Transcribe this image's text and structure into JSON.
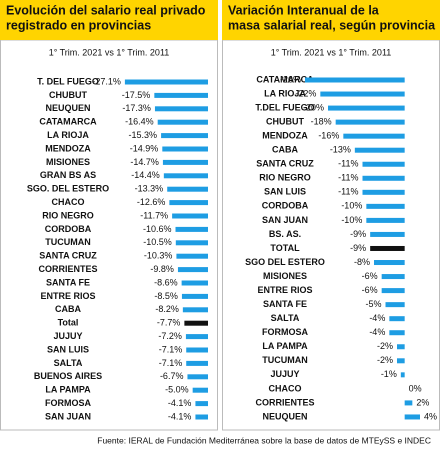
{
  "chart_data": [
    {
      "type": "bar",
      "orientation": "horizontal",
      "title": [
        "Evolución del salario real privado",
        "registrado en provincias"
      ],
      "subtitle": "1° Trim. 2021 vs 1° Trim. 2011",
      "categories": [
        "T. DEL FUEGO",
        "CHUBUT",
        "NEUQUEN",
        "CATAMARCA",
        "LA RIOJA",
        "MENDOZA",
        "MISIONES",
        "GRAN BS AS",
        "SGO. DEL ESTERO",
        "CHACO",
        "RIO NEGRO",
        "CORDOBA",
        "TUCUMAN",
        "SANTA CRUZ",
        "CORRIENTES",
        "SANTA FE",
        "ENTRE RIOS",
        "CABA",
        "Total",
        "JUJUY",
        "SAN LUIS",
        "SALTA",
        "BUENOS AIRES",
        "LA PAMPA",
        "FORMOSA",
        "SAN JUAN"
      ],
      "values": [
        -27.1,
        -17.5,
        -17.3,
        -16.4,
        -15.3,
        -14.9,
        -14.7,
        -14.4,
        -13.3,
        -12.6,
        -11.7,
        -10.6,
        -10.5,
        -10.3,
        -9.8,
        -8.6,
        -8.5,
        -8.2,
        -7.7,
        -7.2,
        -7.1,
        -7.1,
        -6.7,
        -5.0,
        -4.1,
        -4.1
      ],
      "value_labels": [
        "-27.1%",
        "-17.5%",
        "-17.3%",
        "-16.4%",
        "-15.3%",
        "-14.9%",
        "-14.7%",
        "-14.4%",
        "-13.3%",
        "-12.6%",
        "-11.7%",
        "-10.6%",
        "-10.5%",
        "-10.3%",
        "-9.8%",
        "-8.6%",
        "-8.5%",
        "-8.2%",
        "-7.7%",
        "-7.2%",
        "-7.1%",
        "-7.1%",
        "-6.7%",
        "-5.0%",
        "-4.1%",
        "-4.1%"
      ],
      "colors": [
        "#1e9de3",
        "#1e9de3",
        "#1e9de3",
        "#1e9de3",
        "#1e9de3",
        "#1e9de3",
        "#1e9de3",
        "#1e9de3",
        "#1e9de3",
        "#1e9de3",
        "#1e9de3",
        "#1e9de3",
        "#1e9de3",
        "#1e9de3",
        "#1e9de3",
        "#1e9de3",
        "#1e9de3",
        "#1e9de3",
        "#111111",
        "#1e9de3",
        "#1e9de3",
        "#1e9de3",
        "#1e9de3",
        "#1e9de3",
        "#1e9de3",
        "#1e9de3"
      ],
      "xlim": [
        -30,
        0
      ]
    },
    {
      "type": "bar",
      "orientation": "horizontal",
      "title": [
        "Variación Interanual de la",
        "masa salarial real, según provincia"
      ],
      "subtitle": "1° Trim. 2021 vs 1° Trim. 2011",
      "categories": [
        "CATAMARCA",
        "LA RIOJA",
        "T.DEL FUEGO",
        "CHUBUT",
        "MENDOZA",
        "CABA",
        "SANTA CRUZ",
        "RIO NEGRO",
        "SAN LUIS",
        "CORDOBA",
        "SAN JUAN",
        "BS. AS.",
        "TOTAL",
        "SGO DEL ESTERO",
        "MISIONES",
        "ENTRE RIOS",
        "SANTA FE",
        "SALTA",
        "FORMOSA",
        "LA PAMPA",
        "TUCUMAN",
        "JUJUY",
        "CHACO",
        "CORRIENTES",
        "NEUQUEN"
      ],
      "values": [
        -26,
        -22,
        -20,
        -18,
        -16,
        -13,
        -11,
        -11,
        -11,
        -10,
        -10,
        -9,
        -9,
        -8,
        -6,
        -6,
        -5,
        -4,
        -4,
        -2,
        -2,
        -1,
        0,
        2,
        4
      ],
      "value_labels": [
        "-26%",
        "-22%",
        "-20%",
        "-18%",
        "-16%",
        "-13%",
        "-11%",
        "-11%",
        "-11%",
        "-10%",
        "-10%",
        "-9%",
        "-9%",
        "-8%",
        "-6%",
        "-6%",
        "-5%",
        "-4%",
        "-4%",
        "-2%",
        "-2%",
        "-1%",
        "0%",
        "2%",
        "4%"
      ],
      "colors": [
        "#1e9de3",
        "#1e9de3",
        "#1e9de3",
        "#1e9de3",
        "#1e9de3",
        "#1e9de3",
        "#1e9de3",
        "#1e9de3",
        "#1e9de3",
        "#1e9de3",
        "#1e9de3",
        "#1e9de3",
        "#111111",
        "#1e9de3",
        "#1e9de3",
        "#1e9de3",
        "#1e9de3",
        "#1e9de3",
        "#1e9de3",
        "#1e9de3",
        "#1e9de3",
        "#1e9de3",
        "#1e9de3",
        "#1e9de3",
        "#1e9de3"
      ],
      "xlim": [
        -26,
        4
      ]
    }
  ],
  "source": "Fuente: IERAL de Fundación Mediterránea sobre la base de datos de MTEySS e INDEC"
}
